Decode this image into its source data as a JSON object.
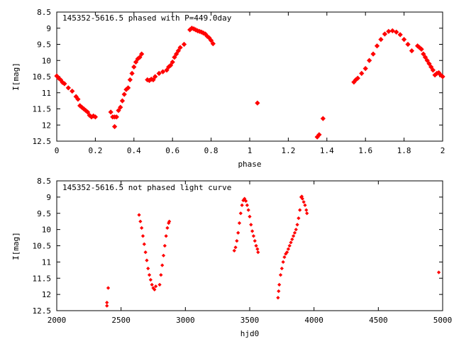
{
  "chart_data": [
    {
      "type": "scatter",
      "title": "145352-5616.5 phased with P=449.0day",
      "xlabel": "phase",
      "ylabel": "I[mag]",
      "xlim": [
        0,
        2
      ],
      "ylim": [
        12.5,
        8.5
      ],
      "y_inverted": true,
      "grid": false,
      "marker": "filled-diamond",
      "xticks": [
        "0",
        "0.2",
        "0.4",
        "0.6",
        "0.8",
        "1",
        "1.2",
        "1.4",
        "1.6",
        "1.8",
        "2"
      ],
      "yticks": [
        "8.5",
        "9",
        "9.5",
        "10",
        "10.5",
        "11",
        "11.5",
        "12",
        "12.5"
      ],
      "series": [
        {
          "color": "#ff0000",
          "x": [
            0.0,
            0.01,
            0.02,
            0.03,
            0.04,
            0.06,
            0.08,
            0.1,
            0.11,
            0.12,
            0.13,
            0.14,
            0.15,
            0.16,
            0.17,
            0.18,
            0.19,
            0.2,
            0.28,
            0.29,
            0.3,
            0.3,
            0.31,
            0.32,
            0.33,
            0.34,
            0.35,
            0.36,
            0.37,
            0.38,
            0.39,
            0.4,
            0.41,
            0.42,
            0.43,
            0.44,
            0.47,
            0.48,
            0.49,
            0.5,
            0.51,
            0.53,
            0.55,
            0.57,
            0.58,
            0.59,
            0.6,
            0.61,
            0.62,
            0.63,
            0.64,
            0.66,
            0.69,
            0.7,
            0.71,
            0.72,
            0.73,
            0.74,
            0.75,
            0.76,
            0.77,
            0.78,
            0.79,
            0.8,
            0.81,
            1.04,
            1.35,
            1.36,
            1.38,
            1.54,
            1.55,
            1.56,
            1.58,
            1.6,
            1.62,
            1.64,
            1.66,
            1.68,
            1.7,
            1.72,
            1.74,
            1.76,
            1.78,
            1.8,
            1.82,
            1.84,
            1.87,
            1.88,
            1.89,
            1.9,
            1.91,
            1.92,
            1.93,
            1.94,
            1.95,
            1.96,
            1.97,
            1.98,
            1.99,
            2.0
          ],
          "y": [
            10.48,
            10.55,
            10.6,
            10.68,
            10.72,
            10.85,
            10.95,
            11.12,
            11.2,
            11.4,
            11.45,
            11.5,
            11.55,
            11.6,
            11.7,
            11.75,
            11.72,
            11.75,
            11.6,
            11.75,
            11.75,
            12.05,
            11.75,
            11.55,
            11.45,
            11.25,
            11.05,
            10.9,
            10.85,
            10.6,
            10.4,
            10.2,
            10.05,
            9.95,
            9.9,
            9.8,
            10.6,
            10.62,
            10.58,
            10.6,
            10.5,
            10.4,
            10.35,
            10.3,
            10.2,
            10.15,
            10.05,
            9.9,
            9.8,
            9.7,
            9.6,
            9.5,
            9.05,
            9.0,
            9.02,
            9.05,
            9.08,
            9.1,
            9.12,
            9.15,
            9.18,
            9.25,
            9.3,
            9.38,
            9.48,
            11.32,
            12.37,
            12.3,
            11.8,
            10.67,
            10.6,
            10.55,
            10.4,
            10.25,
            10.0,
            9.8,
            9.55,
            9.35,
            9.18,
            9.1,
            9.08,
            9.12,
            9.2,
            9.35,
            9.5,
            9.7,
            9.55,
            9.6,
            9.65,
            9.8,
            9.9,
            10.0,
            10.1,
            10.2,
            10.3,
            10.45,
            10.4,
            10.38,
            10.45,
            10.5
          ]
        }
      ]
    },
    {
      "type": "scatter",
      "title": "145352-5616.5 not phased light curve",
      "xlabel": "hjd0",
      "ylabel": "I[mag]",
      "xlim": [
        2000,
        5000
      ],
      "ylim": [
        12.5,
        8.5
      ],
      "y_inverted": true,
      "grid": false,
      "marker": "small-diamond",
      "xticks": [
        "2000",
        "2500",
        "3000",
        "3500",
        "4000",
        "4500",
        "5000"
      ],
      "yticks": [
        "8.5",
        "9",
        "9.5",
        "10",
        "10.5",
        "11",
        "11.5",
        "12",
        "12.5"
      ],
      "series": [
        {
          "color": "#ff0000",
          "x": [
            2390,
            2390,
            2400,
            2640,
            2650,
            2660,
            2670,
            2680,
            2690,
            2700,
            2710,
            2720,
            2730,
            2740,
            2750,
            2760,
            2770,
            2800,
            2810,
            2820,
            2830,
            2840,
            2850,
            2860,
            2870,
            2875,
            3380,
            3390,
            3400,
            3410,
            3420,
            3430,
            3440,
            3450,
            3460,
            3470,
            3480,
            3490,
            3500,
            3510,
            3520,
            3530,
            3540,
            3550,
            3560,
            3565,
            3720,
            3725,
            3730,
            3740,
            3750,
            3760,
            3770,
            3780,
            3790,
            3800,
            3810,
            3820,
            3830,
            3840,
            3850,
            3860,
            3870,
            3880,
            3890,
            3900,
            3905,
            3910,
            3920,
            3930,
            3940,
            3945,
            4970
          ],
          "y": [
            12.35,
            12.25,
            11.8,
            9.55,
            9.75,
            9.95,
            10.2,
            10.45,
            10.7,
            10.95,
            11.2,
            11.4,
            11.55,
            11.7,
            11.8,
            11.85,
            11.75,
            11.7,
            11.4,
            11.1,
            10.8,
            10.5,
            10.2,
            9.95,
            9.8,
            9.75,
            10.65,
            10.55,
            10.35,
            10.1,
            9.8,
            9.5,
            9.25,
            9.1,
            9.05,
            9.12,
            9.25,
            9.4,
            9.6,
            9.85,
            10.05,
            10.2,
            10.35,
            10.5,
            10.6,
            10.7,
            12.1,
            11.9,
            11.7,
            11.4,
            11.2,
            11.0,
            10.85,
            10.75,
            10.7,
            10.6,
            10.5,
            10.4,
            10.3,
            10.2,
            10.1,
            10.0,
            9.85,
            9.65,
            9.4,
            9.0,
            8.98,
            9.05,
            9.15,
            9.25,
            9.4,
            9.5,
            11.32
          ]
        }
      ]
    }
  ]
}
